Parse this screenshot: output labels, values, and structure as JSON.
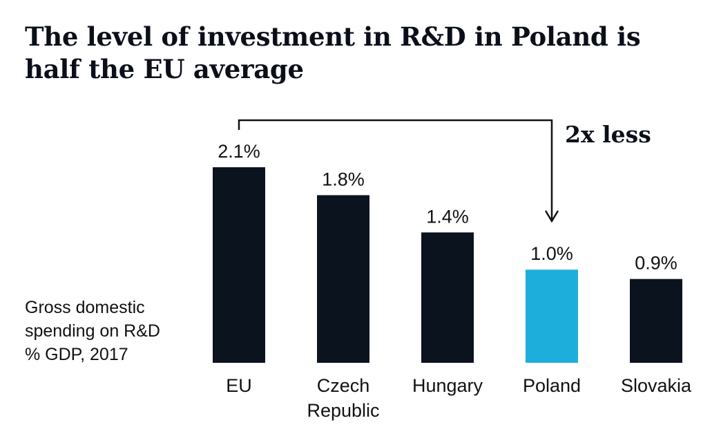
{
  "title": "The level of investment in R&D in Poland is half the EU average",
  "side_label": [
    "Gross domestic",
    "spending on R&D",
    "% GDP, 2017"
  ],
  "annotation": "2x less",
  "colors": {
    "bar": "#0b131f",
    "highlight": "#1eaedb",
    "text": "#111111"
  },
  "chart_data": {
    "type": "bar",
    "categories": [
      [
        "EU"
      ],
      [
        "Czech",
        "Republic"
      ],
      [
        "Hungary"
      ],
      [
        "Poland"
      ],
      [
        "Slovakia"
      ]
    ],
    "values": [
      2.1,
      1.8,
      1.4,
      1.0,
      0.9
    ],
    "value_labels": [
      "2.1%",
      "1.8%",
      "1.4%",
      "1.0%",
      "0.9%"
    ],
    "highlight_index": 3,
    "ylabel": "Gross domestic spending on R&D % GDP, 2017",
    "ylim": [
      0,
      2.1
    ],
    "grid": false
  }
}
